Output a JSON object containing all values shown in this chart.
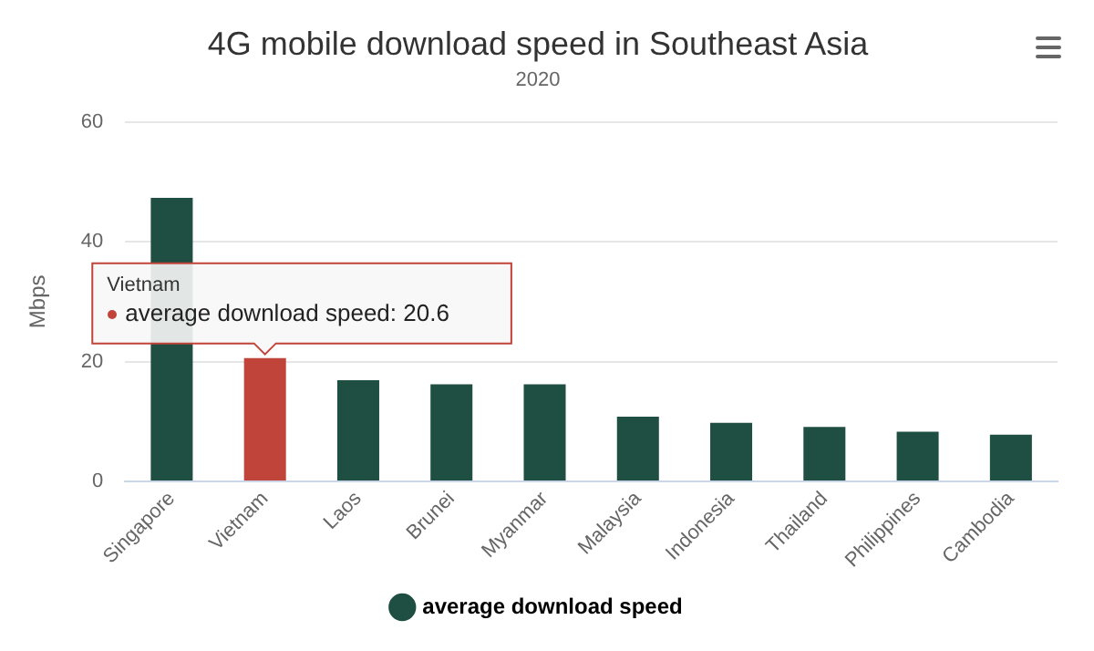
{
  "chart_data": {
    "type": "bar",
    "title": "4G mobile download speed in Southeast Asia",
    "subtitle": "2020",
    "ylabel": "Mbps",
    "categories": [
      "Singapore",
      "Vietnam",
      "Laos",
      "Brunei",
      "Myanmar",
      "Malaysia",
      "Indonesia",
      "Thailand",
      "Philippines",
      "Cambodia"
    ],
    "series": [
      {
        "name": "average download speed",
        "color": "#1f4e42",
        "colors": [
          "#1f4e42",
          "#c0443a",
          "#1f4e42",
          "#1f4e42",
          "#1f4e42",
          "#1f4e42",
          "#1f4e42",
          "#1f4e42",
          "#1f4e42",
          "#1f4e42"
        ],
        "values": [
          47.3,
          20.6,
          16.9,
          16.2,
          16.2,
          10.8,
          9.8,
          9.1,
          8.3,
          7.8
        ]
      }
    ],
    "ylim": [
      0,
      60
    ],
    "yticks": [
      0,
      20,
      40,
      60
    ],
    "grid": "y",
    "legend": "bottom",
    "annotations": [
      "Vietnam",
      {
        "text": "average download speed: 20.6",
        "x": "Vietnam",
        "y": 20.6
      }
    ]
  }
}
